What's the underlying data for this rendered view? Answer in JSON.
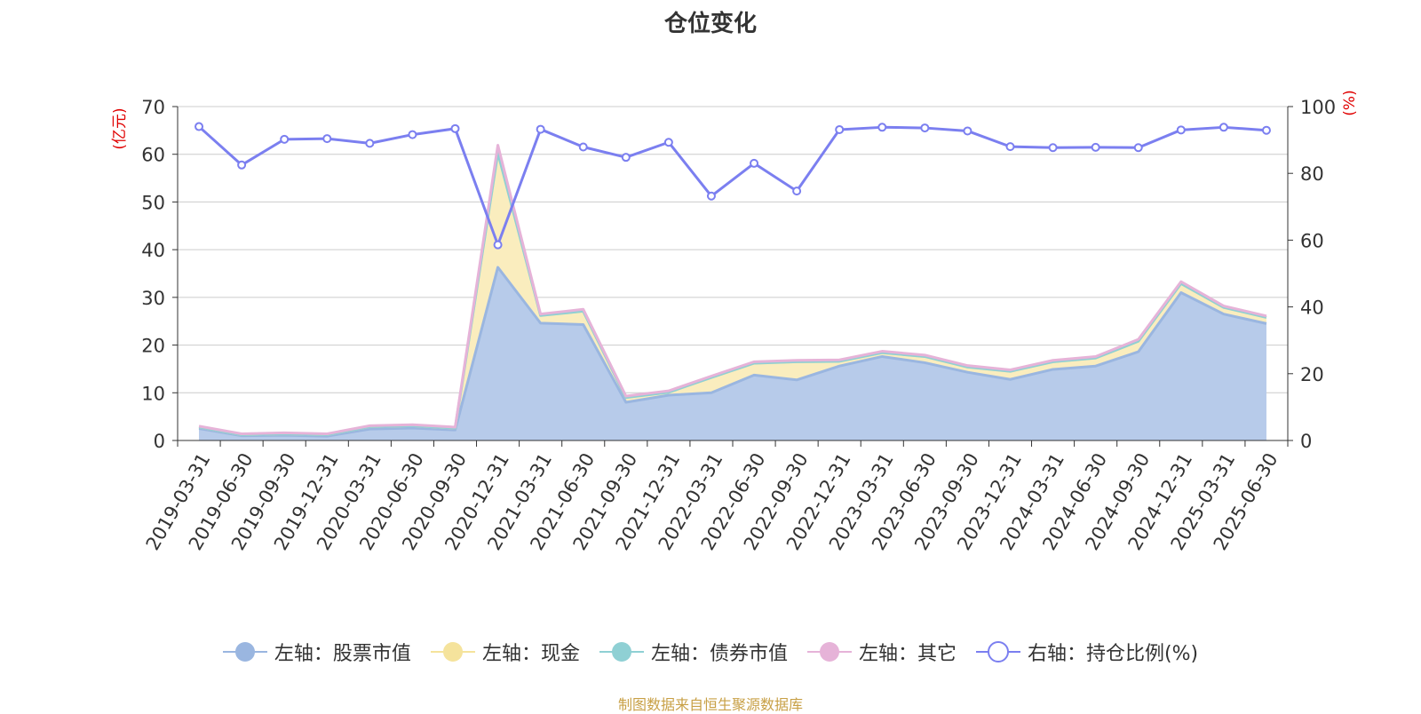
{
  "title": "仓位变化",
  "source_text": "制图数据来自恒生聚源数据库",
  "chart_data": {
    "type": "area",
    "title": "仓位变化",
    "x": [
      "2019-03-31",
      "2019-06-30",
      "2019-09-30",
      "2019-12-31",
      "2020-03-31",
      "2020-06-30",
      "2020-09-30",
      "2020-12-31",
      "2021-03-31",
      "2021-06-30",
      "2021-09-30",
      "2021-12-31",
      "2022-03-31",
      "2022-06-30",
      "2022-09-30",
      "2022-12-31",
      "2023-03-31",
      "2023-06-30",
      "2023-09-30",
      "2023-12-31",
      "2024-03-31",
      "2024-06-30",
      "2024-09-30",
      "2024-12-31",
      "2025-03-31",
      "2025-06-30"
    ],
    "y_left_label": "(亿元)",
    "y_right_label": "(%)",
    "y_left_lim": [
      0,
      70
    ],
    "y_left_ticks": [
      0,
      10,
      20,
      30,
      40,
      50,
      60,
      70
    ],
    "y_right_lim": [
      0,
      100
    ],
    "y_right_ticks": [
      0,
      20,
      40,
      60,
      80,
      100
    ],
    "grid": true,
    "legend_position": "bottom",
    "series": [
      {
        "name": "左轴：股票市值",
        "axis": "left",
        "kind": "stacked-area",
        "color": "#9ab6e0",
        "fill": "#b7cbea",
        "values": [
          2.5,
          1.0,
          1.1,
          0.9,
          2.4,
          2.6,
          2.2,
          36.3,
          24.6,
          24.3,
          8.0,
          9.5,
          10.0,
          13.7,
          12.7,
          15.6,
          17.6,
          16.3,
          14.3,
          12.8,
          14.9,
          15.6,
          18.6,
          31.0,
          26.5,
          24.5
        ]
      },
      {
        "name": "左轴：现金",
        "axis": "left",
        "kind": "stacked-area",
        "color": "#f5e39c",
        "fill": "#faedbe",
        "values": [
          0.3,
          0.2,
          0.3,
          0.3,
          0.5,
          0.5,
          0.4,
          24.0,
          1.6,
          2.8,
          1.0,
          0.6,
          3.2,
          2.5,
          3.8,
          1.0,
          0.8,
          1.3,
          1.1,
          1.7,
          1.6,
          1.7,
          2.2,
          1.9,
          1.4,
          1.3
        ]
      },
      {
        "name": "左轴：债券市值",
        "axis": "left",
        "kind": "stacked-area",
        "color": "#8fd0d4",
        "fill": "#b9e3e6",
        "values": [
          0,
          0,
          0,
          0,
          0,
          0,
          0,
          0,
          0,
          0,
          0,
          0,
          0,
          0,
          0,
          0,
          0,
          0,
          0,
          0,
          0,
          0,
          0,
          0,
          0,
          0
        ]
      },
      {
        "name": "左轴：其它",
        "axis": "left",
        "kind": "stacked-area",
        "color": "#e6b3d8",
        "fill": "#f0cfe6",
        "values": [
          0.2,
          0.2,
          0.2,
          0.2,
          0.2,
          0.2,
          0.2,
          1.6,
          0.3,
          0.4,
          0.3,
          0.3,
          0.3,
          0.3,
          0.3,
          0.3,
          0.3,
          0.3,
          0.3,
          0.3,
          0.3,
          0.3,
          0.4,
          0.4,
          0.3,
          0.3
        ]
      },
      {
        "name": "右轴：持仓比例(%)",
        "axis": "right",
        "kind": "line",
        "color": "#7b7ff0",
        "values": [
          94.0,
          82.5,
          90.2,
          90.4,
          89.0,
          91.6,
          93.4,
          58.6,
          93.2,
          87.9,
          84.8,
          89.3,
          73.2,
          83.0,
          74.7,
          93.1,
          93.8,
          93.6,
          92.7,
          88.0,
          87.7,
          87.8,
          87.7,
          93.0,
          93.8,
          92.9
        ]
      }
    ]
  }
}
